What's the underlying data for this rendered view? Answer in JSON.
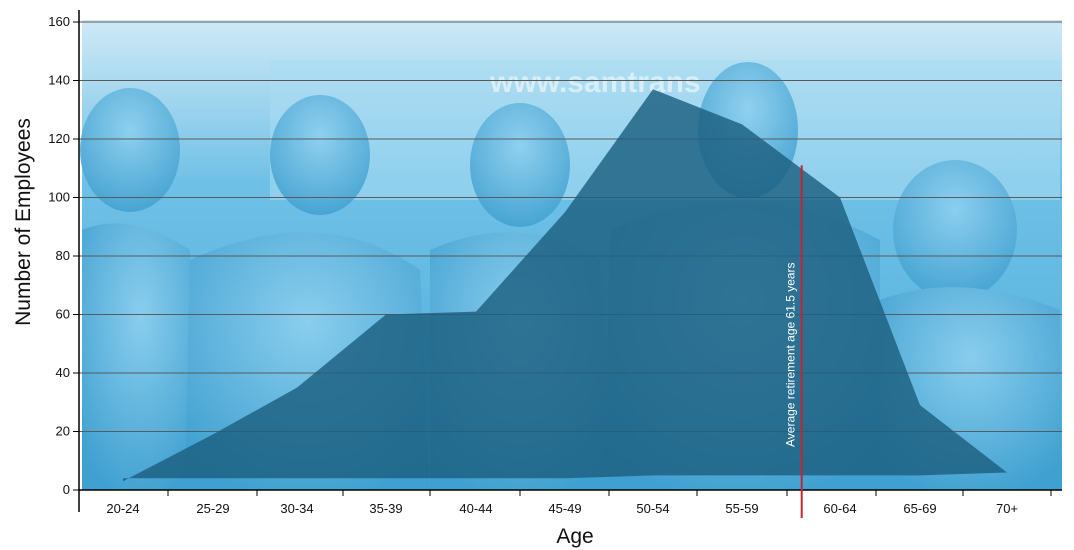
{
  "chart_data": {
    "type": "area",
    "xlabel": "Age",
    "ylabel": "Number of Employees",
    "ylim": [
      0,
      160
    ],
    "yticks": [
      0,
      20,
      40,
      60,
      80,
      100,
      120,
      140,
      160
    ],
    "categories": [
      "20-24",
      "25-29",
      "30-34",
      "35-39",
      "40-44",
      "45-49",
      "50-54",
      "55-59",
      "60-64",
      "65-69",
      "70+"
    ],
    "series": [
      {
        "values": [
          3,
          19,
          35,
          60,
          61,
          95,
          137,
          125,
          100,
          29,
          6
        ]
      }
    ],
    "baseline": [
      4,
      4,
      4,
      4,
      4,
      4,
      5,
      5,
      5,
      5,
      6
    ],
    "grid": true,
    "annotation": {
      "text": "Average retirement age 61.5 years",
      "x_value": 61.5,
      "y_top": 111
    },
    "colors": {
      "background_tint": "#4fb0dd",
      "area_fill": "#1c5f80",
      "retirement_line": "#c0272d",
      "gridline": "#5a5a5a"
    }
  }
}
